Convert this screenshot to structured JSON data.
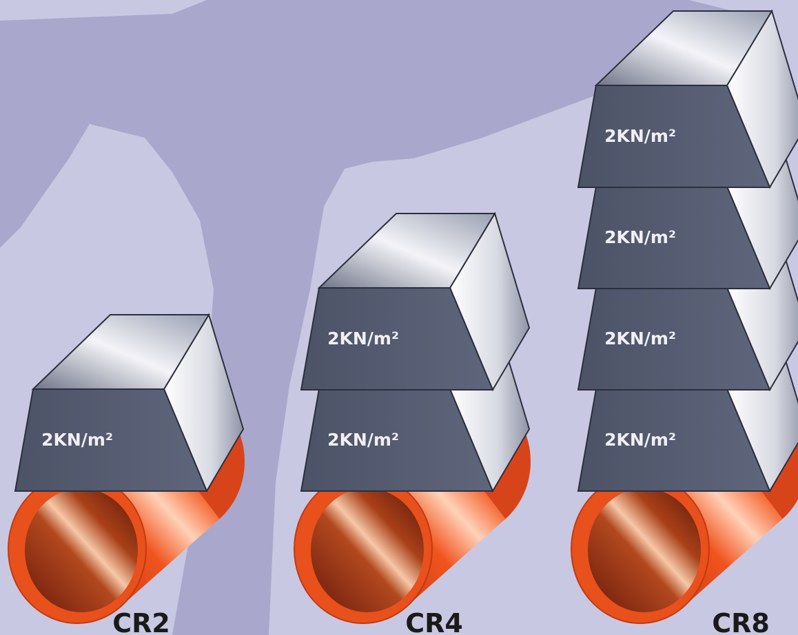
{
  "groups": [
    {
      "label": "CR2",
      "blocks": [
        "2KN/m²"
      ]
    },
    {
      "label": "CR4",
      "blocks": [
        "2KN/m²",
        "2KN/m²"
      ]
    },
    {
      "label": "CR8",
      "blocks": [
        "2KN/m²",
        "2KN/m²",
        "2KN/m²",
        "2KN/m²"
      ]
    }
  ]
}
